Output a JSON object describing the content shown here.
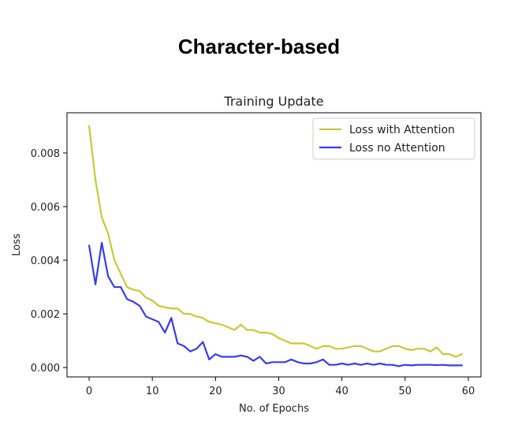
{
  "heading": "Character-based",
  "chart_data": {
    "type": "line",
    "title": "Training Update",
    "xlabel": "No. of Epochs",
    "ylabel": "Loss",
    "xlim": [
      -3.5,
      62
    ],
    "ylim": [
      -0.00035,
      0.0095
    ],
    "xticks": [
      0,
      10,
      20,
      30,
      40,
      50,
      60
    ],
    "yticks": [
      0.0,
      0.002,
      0.004,
      0.006,
      0.008
    ],
    "ytick_labels": [
      "0.000",
      "0.002",
      "0.004",
      "0.006",
      "0.008"
    ],
    "grid": false,
    "legend_position": "top-right",
    "x": [
      0,
      1,
      2,
      3,
      4,
      5,
      6,
      7,
      8,
      9,
      10,
      11,
      12,
      13,
      14,
      15,
      16,
      17,
      18,
      19,
      20,
      21,
      22,
      23,
      24,
      25,
      26,
      27,
      28,
      29,
      30,
      31,
      32,
      33,
      34,
      35,
      36,
      37,
      38,
      39,
      40,
      41,
      42,
      43,
      44,
      45,
      46,
      47,
      48,
      49,
      50,
      51,
      52,
      53,
      54,
      55,
      56,
      57,
      58,
      59
    ],
    "series": [
      {
        "name": "Loss with Attention",
        "color": "#c8c83a",
        "values": [
          0.009,
          0.007,
          0.0056,
          0.005,
          0.004,
          0.0035,
          0.003,
          0.0029,
          0.00285,
          0.0026,
          0.0025,
          0.0023,
          0.00225,
          0.0022,
          0.0022,
          0.002,
          0.002,
          0.0019,
          0.00185,
          0.0017,
          0.00165,
          0.0016,
          0.0015,
          0.0014,
          0.0016,
          0.0014,
          0.0014,
          0.0013,
          0.0013,
          0.00125,
          0.0011,
          0.001,
          0.0009,
          0.0009,
          0.0009,
          0.0008,
          0.0007,
          0.0008,
          0.0008,
          0.0007,
          0.0007,
          0.00075,
          0.0008,
          0.0008,
          0.0007,
          0.0006,
          0.0006,
          0.0007,
          0.0008,
          0.0008,
          0.0007,
          0.00065,
          0.0007,
          0.0007,
          0.0006,
          0.00075,
          0.0005,
          0.0005,
          0.0004,
          0.0005
        ]
      },
      {
        "name": "Loss no Attention",
        "color": "#3b3be8",
        "values": [
          0.00455,
          0.0031,
          0.00465,
          0.0034,
          0.003,
          0.003,
          0.00255,
          0.00245,
          0.0023,
          0.0019,
          0.0018,
          0.0017,
          0.0013,
          0.00185,
          0.0009,
          0.0008,
          0.0006,
          0.0007,
          0.00095,
          0.0003,
          0.0005,
          0.0004,
          0.0004,
          0.0004,
          0.00045,
          0.0004,
          0.00025,
          0.0004,
          0.00015,
          0.0002,
          0.0002,
          0.0002,
          0.0003,
          0.0002,
          0.00015,
          0.00015,
          0.0002,
          0.0003,
          0.0001,
          0.0001,
          0.00015,
          0.0001,
          0.00015,
          0.0001,
          0.00015,
          0.0001,
          0.00015,
          0.0001,
          0.0001,
          5e-05,
          0.0001,
          8e-05,
          0.0001,
          0.0001,
          0.0001,
          9e-05,
          0.0001,
          8e-05,
          8e-05,
          8e-05
        ]
      }
    ]
  }
}
